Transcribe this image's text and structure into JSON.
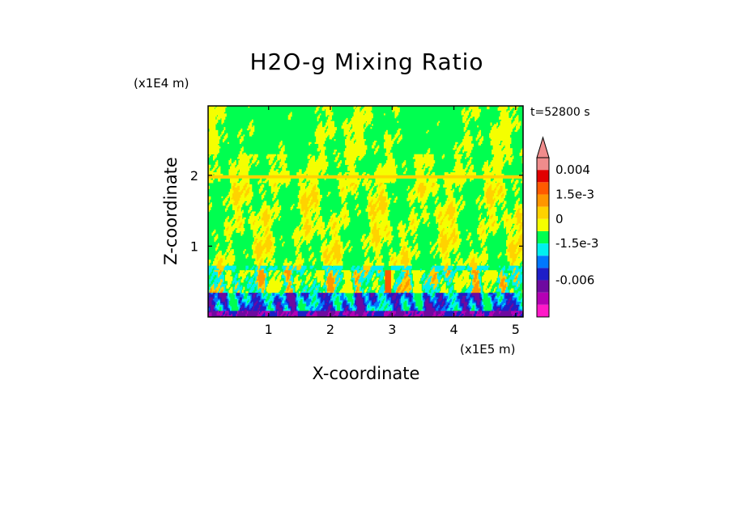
{
  "chart_data": {
    "type": "heatmap",
    "title": "H2O-g Mixing Ratio",
    "time_label": "t=52800 s",
    "xlabel": "X-coordinate",
    "ylabel": "Z-coordinate",
    "x_scale_label": "(x1E5 m)",
    "y_scale_label": "(x1E4 m)",
    "xlim": [
      0.02,
      5.12
    ],
    "ylim": [
      0.0,
      2.98
    ],
    "x_ticks": [
      1,
      2,
      3,
      4,
      5
    ],
    "x_tick_labels": [
      "1",
      "2",
      "3",
      "4",
      "5"
    ],
    "y_ticks": [
      1,
      2
    ],
    "y_tick_labels": [
      "1",
      "2"
    ],
    "colorbar": {
      "levels": [
        {
          "color": "#ff19c8"
        },
        {
          "color": "#b400b4"
        },
        {
          "color": "#6e0aa0"
        },
        {
          "color": "#1e1ec8"
        },
        {
          "color": "#0078ff"
        },
        {
          "color": "#00f0f0"
        },
        {
          "color": "#00ff50"
        },
        {
          "color": "#f5ff00"
        },
        {
          "color": "#ffd200"
        },
        {
          "color": "#ff9600"
        },
        {
          "color": "#ff5a00"
        },
        {
          "color": "#e10000"
        },
        {
          "color": "#f08c8c"
        }
      ],
      "labels": [
        "0.004",
        "1.5e-3",
        "0",
        "-1.5e-3",
        "-0.006"
      ],
      "extend_top": true
    }
  }
}
